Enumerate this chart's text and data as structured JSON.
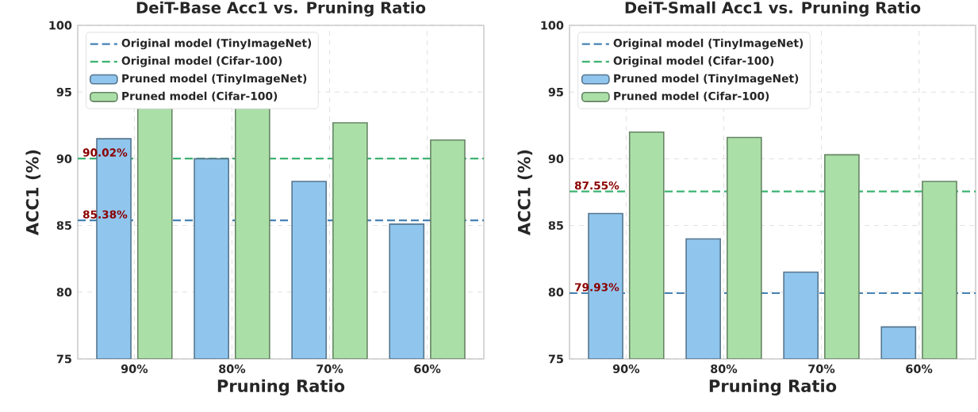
{
  "chart_data": [
    {
      "type": "bar",
      "title": "DeiT-Base Acc1 vs. Pruning Ratio",
      "xlabel": "Pruning Ratio",
      "ylabel": "ACC1 (%)",
      "categories": [
        "90%",
        "80%",
        "70%",
        "60%"
      ],
      "series": [
        {
          "name": "Pruned model (TinyImageNet)",
          "color": "#90c6ee",
          "values": [
            91.5,
            90.0,
            88.3,
            85.1
          ]
        },
        {
          "name": "Pruned model (Cifar-100)",
          "color": "#abdfa8",
          "values": [
            93.8,
            93.8,
            92.7,
            91.4
          ]
        }
      ],
      "ref_lines": [
        {
          "axis": "y",
          "value": 85.38,
          "label": "Original model (TinyImageNet)",
          "color": "#4682b4",
          "line_style": "dashed"
        },
        {
          "axis": "y",
          "value": 90.02,
          "label": "Original model (Cifar-100)",
          "color": "#3cb371",
          "line_style": "dashed"
        }
      ],
      "annotations": [
        {
          "text": "85.38%",
          "y": 85.38
        },
        {
          "text": "90.02%",
          "y": 90.02
        }
      ],
      "ylim": [
        75,
        100
      ],
      "yticks": [
        75,
        80,
        85,
        90,
        95,
        100
      ],
      "grid": true,
      "legend": "top left"
    },
    {
      "type": "bar",
      "title": "DeiT-Small Acc1 vs. Pruning Ratio",
      "xlabel": "Pruning Ratio",
      "ylabel": "ACC1 (%)",
      "categories": [
        "90%",
        "80%",
        "70%",
        "60%"
      ],
      "series": [
        {
          "name": "Pruned model (TinyImageNet)",
          "color": "#90c6ee",
          "values": [
            85.9,
            84.0,
            81.5,
            77.4
          ]
        },
        {
          "name": "Pruned model (Cifar-100)",
          "color": "#abdfa8",
          "values": [
            92.0,
            91.6,
            90.3,
            88.3
          ]
        }
      ],
      "ref_lines": [
        {
          "axis": "y",
          "value": 79.93,
          "label": "Original model (TinyImageNet)",
          "color": "#4682b4",
          "line_style": "dashed"
        },
        {
          "axis": "y",
          "value": 87.55,
          "label": "Original model (Cifar-100)",
          "color": "#3cb371",
          "line_style": "dashed"
        }
      ],
      "annotations": [
        {
          "text": "79.93%",
          "y": 79.93
        },
        {
          "text": "87.55%",
          "y": 87.55
        }
      ],
      "ylim": [
        75,
        100
      ],
      "yticks": [
        75,
        80,
        85,
        90,
        95,
        100
      ],
      "grid": true,
      "legend": "top left"
    }
  ]
}
